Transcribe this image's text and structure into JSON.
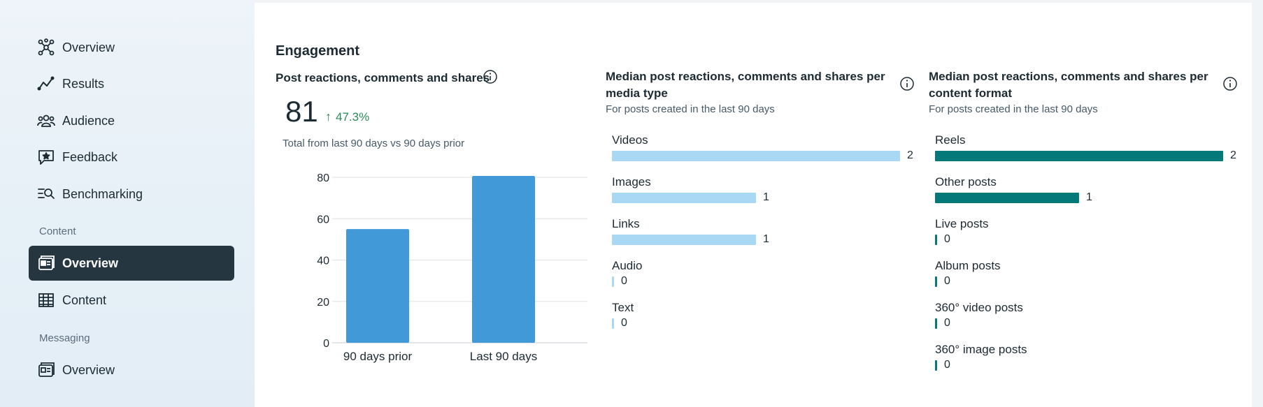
{
  "sidebar": {
    "items": [
      {
        "label": "Overview",
        "icon": "network-icon"
      },
      {
        "label": "Results",
        "icon": "trend-icon"
      },
      {
        "label": "Audience",
        "icon": "people-icon"
      },
      {
        "label": "Feedback",
        "icon": "star-chat-icon"
      },
      {
        "label": "Benchmarking",
        "icon": "benchmark-icon"
      }
    ],
    "content_section": "Content",
    "content_items": [
      {
        "label": "Overview",
        "icon": "content-overview-icon",
        "active": true
      },
      {
        "label": "Content",
        "icon": "table-icon"
      }
    ],
    "messaging_section": "Messaging",
    "messaging_items": [
      {
        "label": "Overview",
        "icon": "messaging-overview-icon"
      }
    ]
  },
  "engagement": {
    "title": "Engagement",
    "card1": {
      "title": "Post reactions, comments and shares",
      "total": "81",
      "delta": "47.3%",
      "subtitle": "Total from last 90 days vs 90 days prior"
    },
    "card2": {
      "title_line1": "Median post reactions, comments and shares per",
      "title_line2": "media type",
      "subtitle": "For posts created in the last 90 days"
    },
    "card3": {
      "title_line1": "Median post reactions, comments and shares per",
      "title_line2": "content format",
      "subtitle": "For posts created in the last 90 days"
    }
  },
  "colors": {
    "bar_blue": "#4299d8",
    "light_blue": "#a8d8f4",
    "teal": "#04797a",
    "delta_green": "#2a8b57",
    "active_nav": "#263640"
  },
  "chart_data": [
    {
      "type": "bar",
      "categories": [
        "90 days prior",
        "Last 90 days"
      ],
      "values": [
        55,
        81
      ],
      "ylim": [
        0,
        80
      ],
      "yticks": [
        0,
        20,
        40,
        60,
        80
      ],
      "grid": true
    },
    {
      "type": "bar",
      "orientation": "horizontal",
      "categories": [
        "Videos",
        "Images",
        "Links",
        "Audio",
        "Text"
      ],
      "values": [
        2,
        1,
        1,
        0,
        0
      ]
    },
    {
      "type": "bar",
      "orientation": "horizontal",
      "categories": [
        "Reels",
        "Other posts",
        "Live posts",
        "Album posts",
        "360° video posts",
        "360° image posts"
      ],
      "values": [
        2,
        1,
        0,
        0,
        0,
        0
      ]
    }
  ]
}
